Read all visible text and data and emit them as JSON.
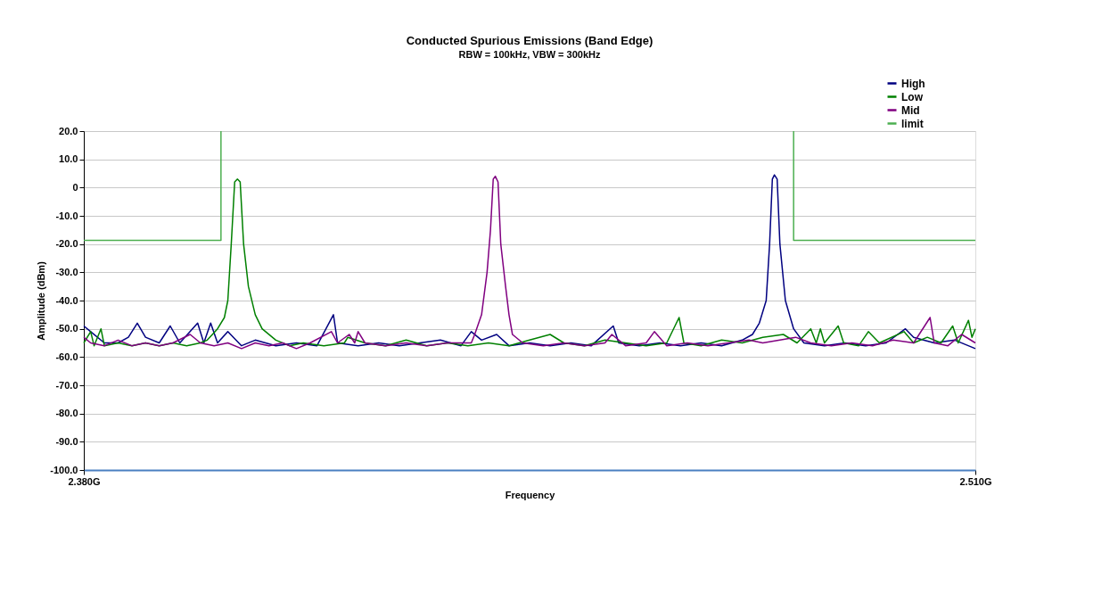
{
  "chart_data": {
    "type": "line",
    "title": "Conducted Spurious Emissions (Band Edge)",
    "subtitle": "RBW = 100kHz, VBW = 300kHz",
    "xlabel": "Frequency",
    "ylabel": "Amplitude (dBm)",
    "xlim": [
      2.38,
      2.51
    ],
    "xticks": [
      {
        "value": 2.38,
        "label": "2.380G"
      },
      {
        "value": 2.51,
        "label": "2.510G"
      }
    ],
    "ylim": [
      -100,
      20
    ],
    "yticks": [
      {
        "value": 20,
        "label": "20.0"
      },
      {
        "value": 10,
        "label": "10.0"
      },
      0,
      {
        "value": -10,
        "label": "-10.0"
      },
      {
        "value": -20,
        "label": "-20.0"
      },
      {
        "value": -30,
        "label": "-30.0"
      },
      {
        "value": -40,
        "label": "-40.0"
      },
      {
        "value": -50,
        "label": "-50.0"
      },
      {
        "value": -60,
        "label": "-60.0"
      },
      {
        "value": -70,
        "label": "-70.0"
      },
      {
        "value": -80,
        "label": "-80.0"
      },
      {
        "value": -90,
        "label": "-90.0"
      },
      {
        "value": -100,
        "label": "-100.0"
      }
    ],
    "grid": "y",
    "legend": "top right",
    "marker": "none",
    "line_style": "solid",
    "series": [
      {
        "name": "High",
        "color": "#000080",
        "x": [
          2.38,
          2.381,
          2.383,
          2.385,
          2.3865,
          2.3878,
          2.389,
          2.391,
          2.3926,
          2.394,
          2.3966,
          2.3975,
          2.3985,
          2.3995,
          2.401,
          2.403,
          2.405,
          2.408,
          2.411,
          2.414,
          2.4164,
          2.417,
          2.42,
          2.423,
          2.426,
          2.429,
          2.432,
          2.435,
          2.4365,
          2.438,
          2.4402,
          2.442,
          2.445,
          2.448,
          2.451,
          2.454,
          2.4572,
          2.458,
          2.461,
          2.464,
          2.467,
          2.47,
          2.473,
          2.476,
          2.4775,
          2.4785,
          2.4795,
          2.48,
          2.4804,
          2.4807,
          2.4811,
          2.4815,
          2.4823,
          2.4835,
          2.485,
          2.488,
          2.491,
          2.494,
          2.497,
          2.4998,
          2.501,
          2.504,
          2.507,
          2.51
        ],
        "values": [
          -49,
          -51,
          -55,
          -55,
          -53,
          -48,
          -53,
          -55,
          -49,
          -55,
          -48,
          -55,
          -48,
          -55,
          -51,
          -56,
          -54,
          -56,
          -55,
          -56,
          -45,
          -55,
          -56,
          -55,
          -56,
          -55,
          -54,
          -56,
          -51,
          -54,
          -52,
          -56,
          -55,
          -56,
          -55,
          -56,
          -49,
          -55,
          -56,
          -55,
          -56,
          -55,
          -56,
          -54,
          -52,
          -48,
          -40,
          -20,
          3,
          4.5,
          3,
          -20,
          -40,
          -50,
          -55,
          -56,
          -55,
          -56,
          -55,
          -50,
          -53,
          -55,
          -54,
          -57
        ]
      },
      {
        "name": "Low",
        "color": "#008000",
        "x": [
          2.38,
          2.381,
          2.3815,
          2.3825,
          2.383,
          2.385,
          2.387,
          2.389,
          2.391,
          2.393,
          2.395,
          2.397,
          2.398,
          2.3995,
          2.4005,
          2.401,
          2.4015,
          2.402,
          2.4024,
          2.4028,
          2.4033,
          2.404,
          2.405,
          2.406,
          2.408,
          2.41,
          2.412,
          2.415,
          2.418,
          2.4185,
          2.421,
          2.424,
          2.427,
          2.43,
          2.433,
          2.436,
          2.439,
          2.442,
          2.445,
          2.448,
          2.45,
          2.453,
          2.456,
          2.459,
          2.462,
          2.465,
          2.4668,
          2.4675,
          2.47,
          2.473,
          2.476,
          2.479,
          2.482,
          2.484,
          2.486,
          2.4868,
          2.4874,
          2.488,
          2.49,
          2.4908,
          2.493,
          2.4944,
          2.496,
          2.4996,
          2.501,
          2.503,
          2.505,
          2.5067,
          2.5075,
          2.509,
          2.5095,
          2.51
        ],
        "values": [
          -55,
          -51,
          -56,
          -50,
          -56,
          -55,
          -56,
          -55,
          -56,
          -55,
          -56,
          -55,
          -54,
          -50,
          -46,
          -40,
          -20,
          2,
          3,
          2,
          -20,
          -35,
          -45,
          -50,
          -54,
          -56,
          -55,
          -56,
          -55,
          -53,
          -55,
          -56,
          -54,
          -56,
          -55,
          -56,
          -55,
          -56,
          -54,
          -52,
          -55,
          -56,
          -54,
          -55,
          -56,
          -55,
          -46,
          -55,
          -56,
          -54,
          -55,
          -53,
          -52,
          -55,
          -50,
          -55,
          -50,
          -55,
          -49,
          -55,
          -56,
          -51,
          -55,
          -51,
          -55,
          -53,
          -55,
          -49,
          -55,
          -47,
          -53,
          -50
        ]
      },
      {
        "name": "Mid",
        "color": "#800080",
        "x": [
          2.38,
          2.381,
          2.383,
          2.385,
          2.387,
          2.389,
          2.391,
          2.393,
          2.3955,
          2.397,
          2.399,
          2.401,
          2.403,
          2.405,
          2.407,
          2.409,
          2.411,
          2.413,
          2.4161,
          2.417,
          2.4187,
          2.4195,
          2.42,
          2.421,
          2.424,
          2.427,
          2.43,
          2.433,
          2.4365,
          2.437,
          2.438,
          2.4388,
          2.4393,
          2.4397,
          2.44,
          2.4404,
          2.4408,
          2.4415,
          2.442,
          2.4425,
          2.444,
          2.447,
          2.45,
          2.453,
          2.456,
          2.457,
          2.459,
          2.462,
          2.4632,
          2.465,
          2.468,
          2.471,
          2.474,
          2.477,
          2.479,
          2.4815,
          2.4838,
          2.486,
          2.489,
          2.492,
          2.495,
          2.498,
          2.501,
          2.5034,
          2.504,
          2.506,
          2.508,
          2.51
        ],
        "values": [
          -53,
          -55,
          -56,
          -54,
          -56,
          -55,
          -56,
          -55,
          -52,
          -55,
          -56,
          -55,
          -57,
          -55,
          -56,
          -55,
          -57,
          -55,
          -51,
          -55,
          -52,
          -55,
          -51,
          -55,
          -56,
          -55,
          -56,
          -55,
          -55,
          -52,
          -45,
          -30,
          -15,
          3,
          4,
          2,
          -20,
          -35,
          -45,
          -52,
          -55,
          -56,
          -55,
          -56,
          -55,
          -52,
          -56,
          -55,
          -51,
          -56,
          -55,
          -56,
          -55,
          -54,
          -55,
          -54,
          -53,
          -55,
          -56,
          -55,
          -56,
          -54,
          -55,
          -46,
          -55,
          -56,
          -52,
          -55
        ]
      },
      {
        "name": "limit",
        "color": "#4caf50",
        "x": [
          2.38,
          2.4,
          2.4,
          2.44,
          2.4835,
          2.4835,
          2.51
        ],
        "values": [
          -18.7,
          -18.7,
          20,
          null,
          20,
          -18.7,
          -18.7
        ]
      }
    ]
  }
}
